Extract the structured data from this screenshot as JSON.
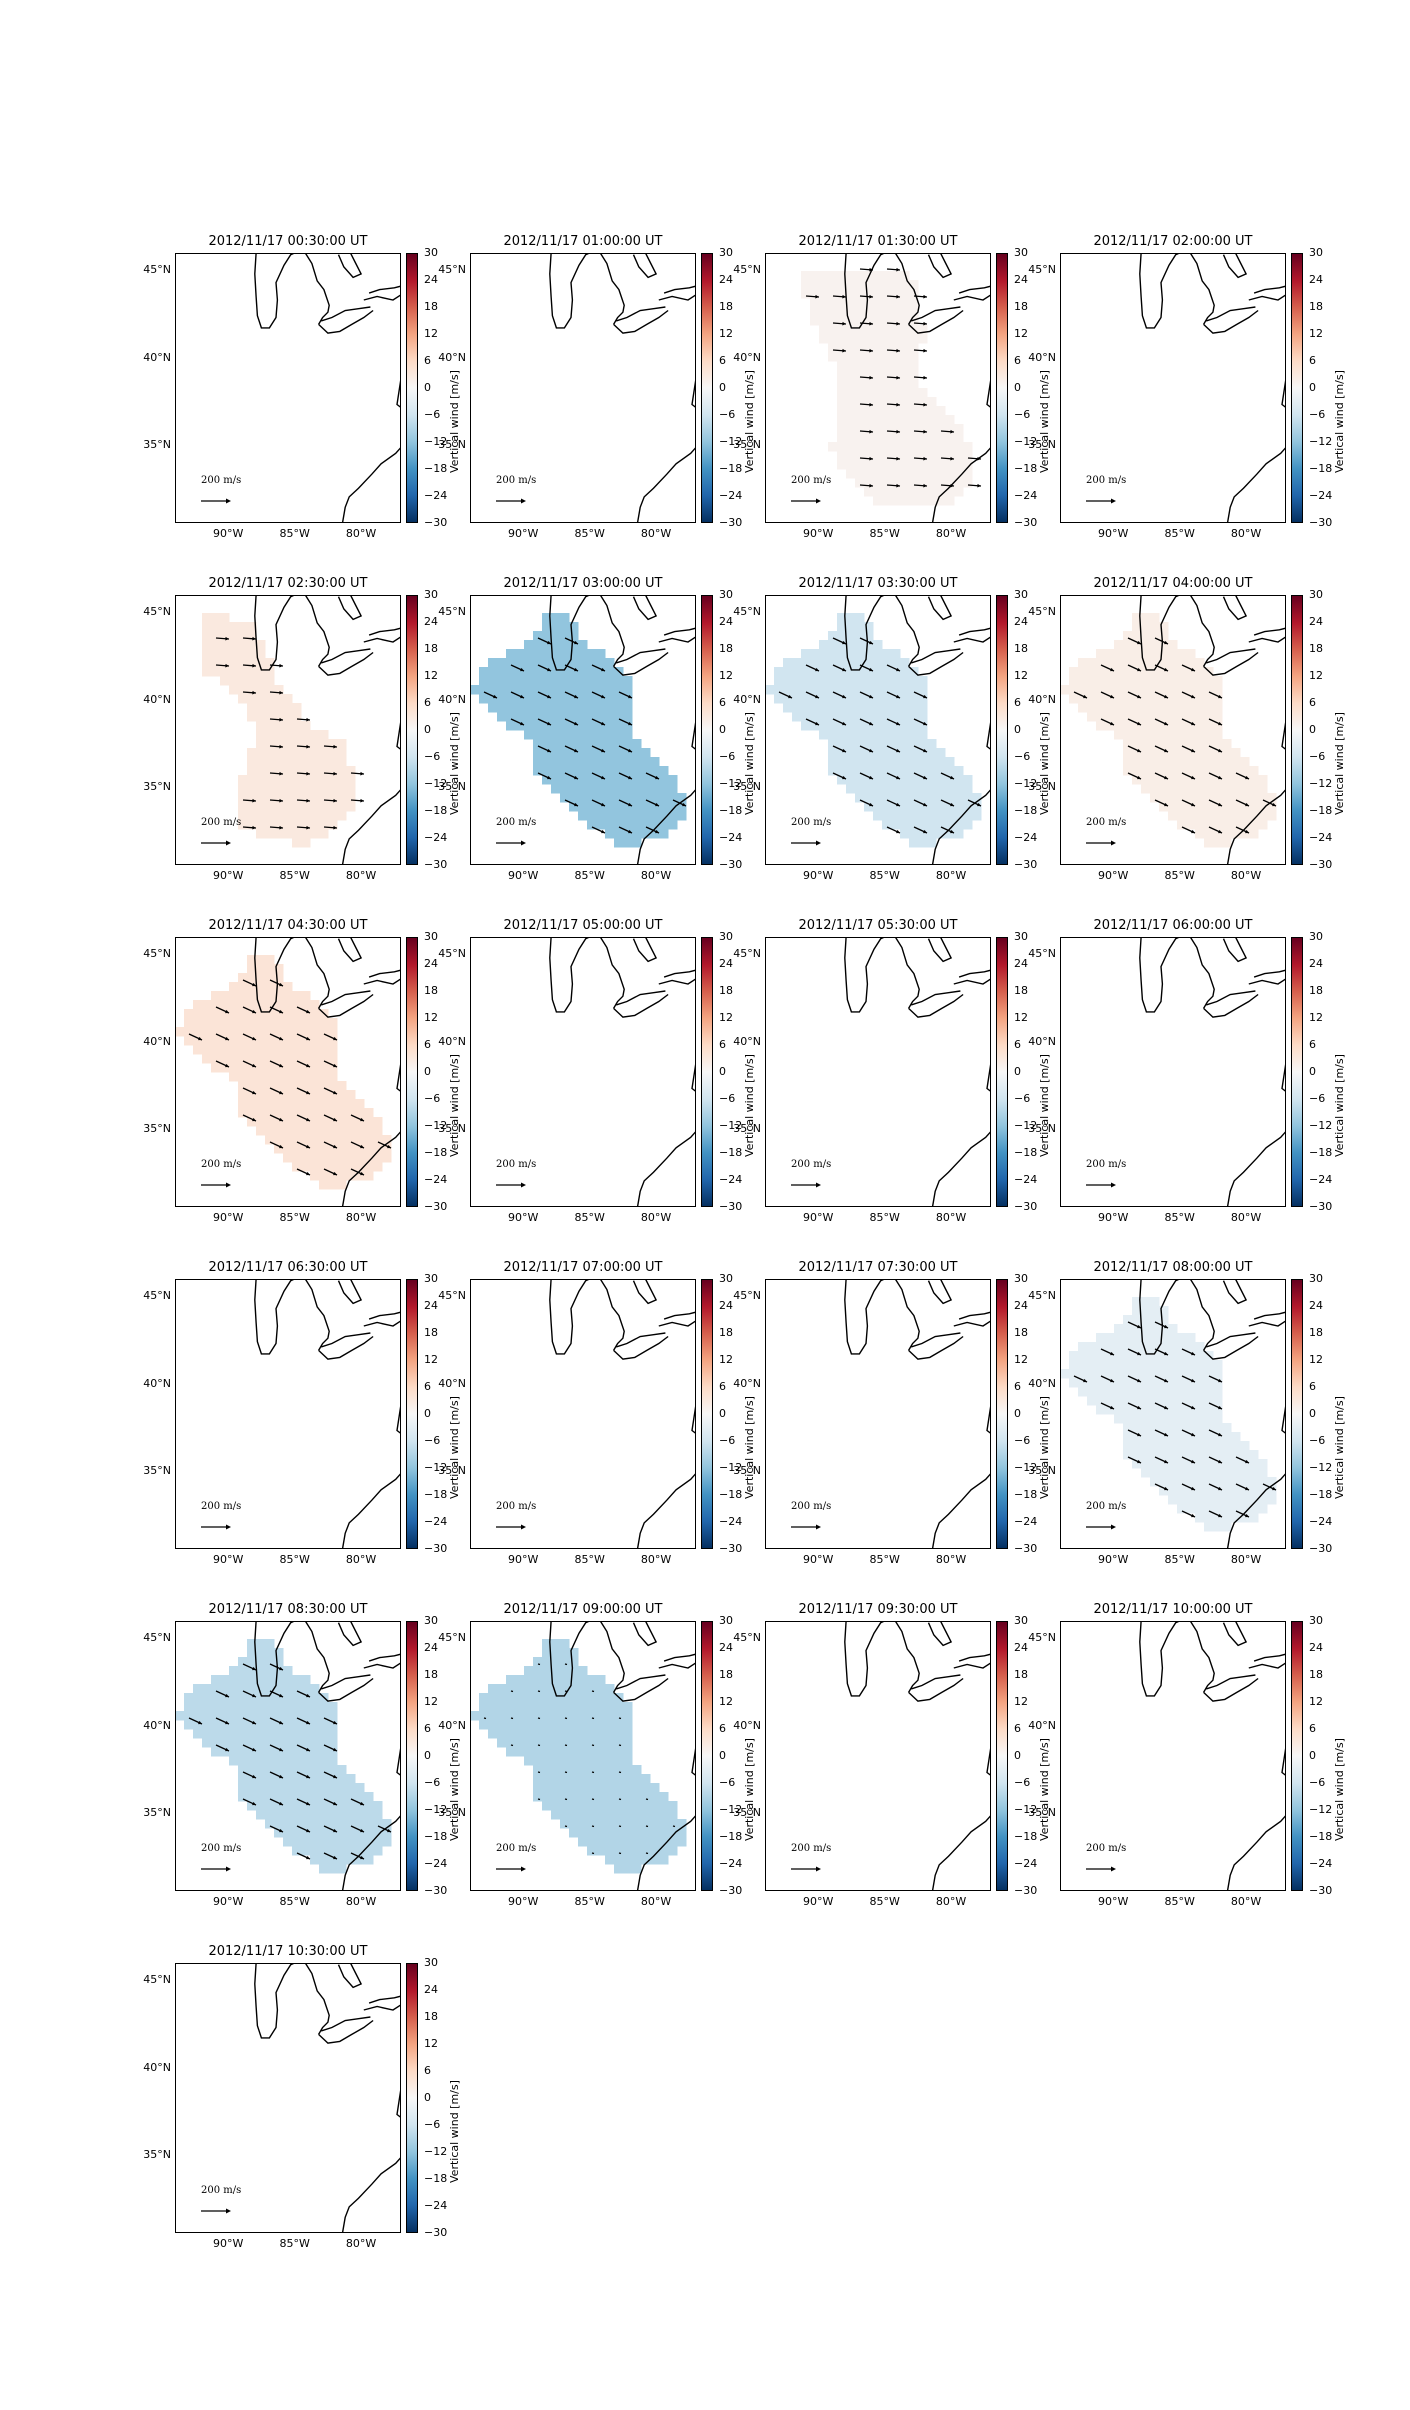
{
  "chart_data": {
    "type": "heatmap",
    "colorbar": {
      "label": "Vertical wind [m/s]",
      "ticks": [
        "30",
        "24",
        "18",
        "12",
        "6",
        "0",
        "−6",
        "−12",
        "−18",
        "−24",
        "−30"
      ],
      "range": [
        -30,
        30
      ],
      "colormap": "RdBu_r"
    },
    "lat_ticks": [
      "45°N",
      "40°N",
      "35°N"
    ],
    "lon_ticks": [
      "90°W",
      "85°W",
      "80°W"
    ],
    "vector_scale_label": "200 m/s",
    "vector_direction": "southeast",
    "panels": [
      {
        "title": "2012/11/17 00:30:00 UT",
        "value": null
      },
      {
        "title": "2012/11/17 01:00:00 UT",
        "value": null
      },
      {
        "title": "2012/11/17 01:30:00 UT",
        "value": 1
      },
      {
        "title": "2012/11/17 02:00:00 UT",
        "value": null
      },
      {
        "title": "2012/11/17 02:30:00 UT",
        "value": 3
      },
      {
        "title": "2012/11/17 03:00:00 UT",
        "value": -12
      },
      {
        "title": "2012/11/17 03:30:00 UT",
        "value": -6
      },
      {
        "title": "2012/11/17 04:00:00 UT",
        "value": 2
      },
      {
        "title": "2012/11/17 04:30:00 UT",
        "value": 4
      },
      {
        "title": "2012/11/17 05:00:00 UT",
        "value": null
      },
      {
        "title": "2012/11/17 05:30:00 UT",
        "value": null
      },
      {
        "title": "2012/11/17 06:00:00 UT",
        "value": null
      },
      {
        "title": "2012/11/17 06:30:00 UT",
        "value": null
      },
      {
        "title": "2012/11/17 07:00:00 UT",
        "value": null
      },
      {
        "title": "2012/11/17 07:30:00 UT",
        "value": null
      },
      {
        "title": "2012/11/17 08:00:00 UT",
        "value": -3
      },
      {
        "title": "2012/11/17 08:30:00 UT",
        "value": -8
      },
      {
        "title": "2012/11/17 09:00:00 UT",
        "value": -9
      },
      {
        "title": "2012/11/17 09:30:00 UT",
        "value": null
      },
      {
        "title": "2012/11/17 10:00:00 UT",
        "value": null
      },
      {
        "title": "2012/11/17 10:30:00 UT",
        "value": null
      }
    ]
  },
  "colors": {
    "positive": "#f4a582",
    "negative": "#4393c3",
    "neutral": "#f7f7f7",
    "coastline": "#000000"
  }
}
